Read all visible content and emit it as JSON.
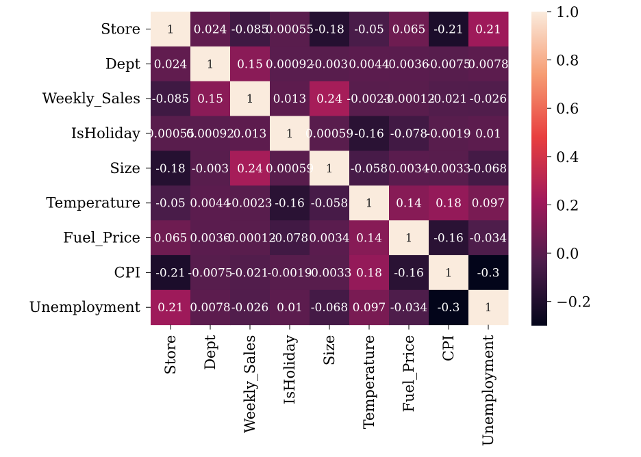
{
  "chart_data": {
    "type": "heatmap",
    "title": "",
    "xlabel": "",
    "ylabel": "",
    "variables": [
      "Store",
      "Dept",
      "Weekly_Sales",
      "IsHoliday",
      "Size",
      "Temperature",
      "Fuel_Price",
      "CPI",
      "Unemployment"
    ],
    "values": [
      [
        1,
        0.024,
        -0.085,
        0.00055,
        -0.18,
        -0.05,
        0.065,
        -0.21,
        0.21
      ],
      [
        0.024,
        1,
        0.15,
        0.00092,
        -0.003,
        0.0044,
        0.0036,
        -0.0075,
        0.0078
      ],
      [
        -0.085,
        0.15,
        1,
        0.013,
        0.24,
        -0.0023,
        -0.00012,
        -0.021,
        -0.026
      ],
      [
        0.00055,
        0.00092,
        0.013,
        1,
        0.00059,
        -0.16,
        -0.078,
        -0.0019,
        0.01
      ],
      [
        -0.18,
        -0.003,
        0.24,
        0.00059,
        1,
        -0.058,
        0.0034,
        -0.0033,
        -0.068
      ],
      [
        -0.05,
        0.0044,
        -0.0023,
        -0.16,
        -0.058,
        1,
        0.14,
        0.18,
        0.097
      ],
      [
        0.065,
        0.0036,
        -0.00012,
        -0.078,
        0.0034,
        0.14,
        1,
        -0.16,
        -0.034
      ],
      [
        -0.21,
        -0.0075,
        -0.021,
        -0.0019,
        -0.0033,
        0.18,
        -0.16,
        1,
        -0.3
      ],
      [
        0.21,
        0.0078,
        -0.026,
        0.01,
        -0.068,
        0.097,
        -0.034,
        -0.3,
        1
      ]
    ],
    "cell_labels": [
      [
        "1",
        "0.024",
        "-0.085",
        "0.00055",
        "-0.18",
        "-0.05",
        "0.065",
        "-0.21",
        "0.21"
      ],
      [
        "0.024",
        "1",
        "0.15",
        "0.00092",
        "-0.003",
        "0.0044",
        "0.0036",
        "-0.0075",
        "0.0078"
      ],
      [
        "-0.085",
        "0.15",
        "1",
        "0.013",
        "0.24",
        "-0.0023",
        "-0.00012",
        "-0.021",
        "-0.026"
      ],
      [
        "0.00055",
        "0.00092",
        "0.013",
        "1",
        "0.00059",
        "-0.16",
        "-0.078",
        "-0.0019",
        "0.01"
      ],
      [
        "-0.18",
        "-0.003",
        "0.24",
        "0.00059",
        "1",
        "-0.058",
        "0.0034",
        "-0.0033",
        "-0.068"
      ],
      [
        "-0.05",
        "0.0044",
        "-0.0023",
        "-0.16",
        "-0.058",
        "1",
        "0.14",
        "0.18",
        "0.097"
      ],
      [
        "0.065",
        "0.0036",
        "-0.00012",
        "-0.078",
        "0.0034",
        "0.14",
        "1",
        "-0.16",
        "-0.034"
      ],
      [
        "-0.21",
        "-0.0075",
        "-0.021",
        "-0.0019",
        "-0.0033",
        "0.18",
        "-0.16",
        "1",
        "-0.3"
      ],
      [
        "0.21",
        "0.0078",
        "-0.026",
        "0.01",
        "-0.068",
        "0.097",
        "-0.034",
        "-0.3",
        "1"
      ]
    ],
    "colorbar": {
      "min": -0.3,
      "max": 1.0,
      "ticks": [
        1.0,
        0.8,
        0.6,
        0.4,
        0.2,
        0.0,
        -0.2
      ],
      "tick_labels": [
        "1.0",
        "0.8",
        "0.6",
        "0.4",
        "0.2",
        "0.0",
        "−0.2"
      ]
    },
    "colormap": "rocket",
    "colormap_stops": [
      "#03051a",
      "#4c1d4b",
      "#a11a5b",
      "#e83f3f",
      "#f69c73",
      "#faebdd"
    ],
    "grid": false,
    "annotations": true
  }
}
